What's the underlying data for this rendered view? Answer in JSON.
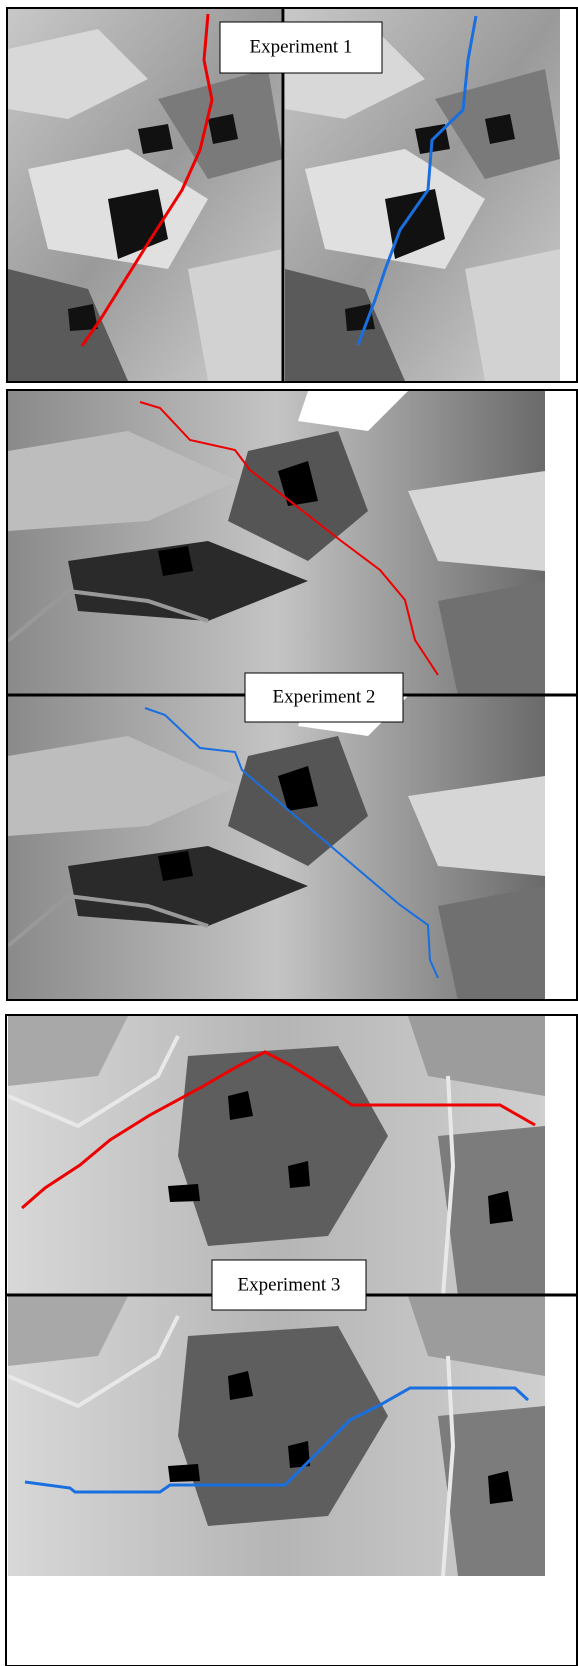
{
  "experiments": [
    {
      "label": "Experiment 1"
    },
    {
      "label": "Experiment 2"
    },
    {
      "label": "Experiment 3"
    }
  ]
}
